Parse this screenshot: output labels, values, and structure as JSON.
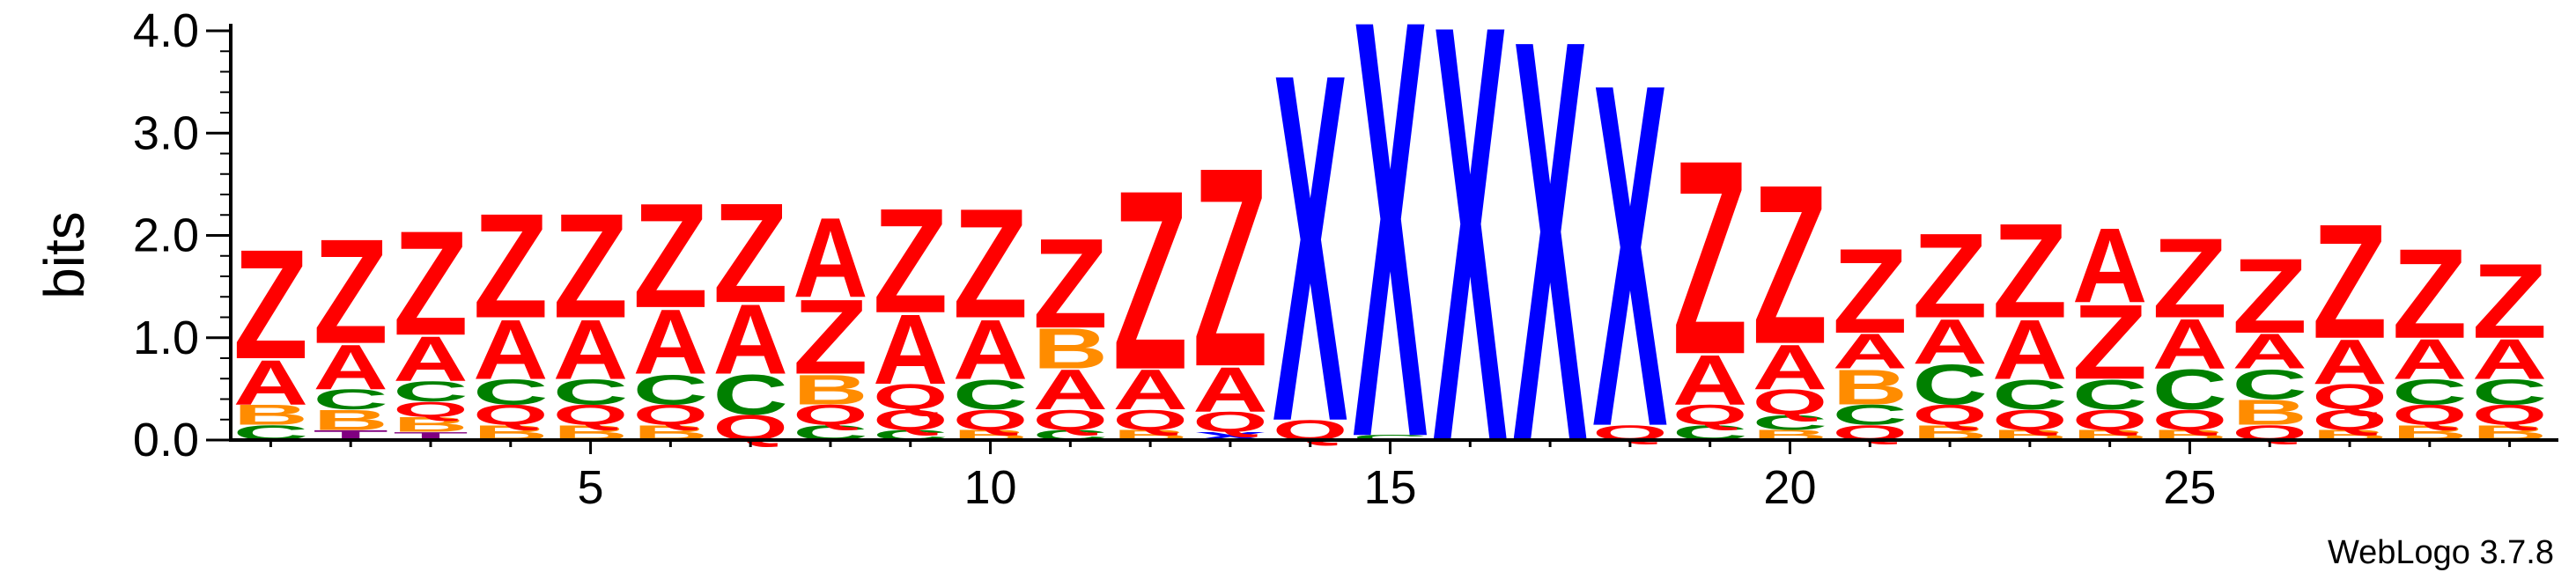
{
  "chart_data": {
    "type": "sequence-logo",
    "ylabel": "bits",
    "ylim": [
      0,
      4.0
    ],
    "yticks": [
      "0.0",
      "1.0",
      "2.0",
      "3.0",
      "4.0"
    ],
    "xticks": [
      5,
      10,
      15,
      20,
      25
    ],
    "positions": [
      {
        "pos": 1,
        "stack": [
          [
            "C",
            0.15
          ],
          [
            "B",
            0.2
          ],
          [
            "A",
            0.45
          ],
          [
            "Z",
            1.1
          ]
        ]
      },
      {
        "pos": 2,
        "stack": [
          [
            "T",
            0.1
          ],
          [
            "B",
            0.2
          ],
          [
            "C",
            0.2
          ],
          [
            "A",
            0.45
          ],
          [
            "Z",
            1.05
          ]
        ]
      },
      {
        "pos": 3,
        "stack": [
          [
            "T",
            0.08
          ],
          [
            "B",
            0.15
          ],
          [
            "Q",
            0.15
          ],
          [
            "C",
            0.2
          ],
          [
            "A",
            0.45
          ],
          [
            "Z",
            1.05
          ]
        ]
      },
      {
        "pos": 4,
        "stack": [
          [
            "B",
            0.15
          ],
          [
            "Q",
            0.2
          ],
          [
            "C",
            0.25
          ],
          [
            "A",
            0.6
          ],
          [
            "Z",
            1.05
          ]
        ]
      },
      {
        "pos": 5,
        "stack": [
          [
            "B",
            0.15
          ],
          [
            "Q",
            0.2
          ],
          [
            "C",
            0.25
          ],
          [
            "A",
            0.6
          ],
          [
            "Z",
            1.05
          ]
        ]
      },
      {
        "pos": 6,
        "stack": [
          [
            "B",
            0.15
          ],
          [
            "Q",
            0.2
          ],
          [
            "C",
            0.3
          ],
          [
            "A",
            0.65
          ],
          [
            "Z",
            1.05
          ]
        ]
      },
      {
        "pos": 7,
        "stack": [
          [
            "Q",
            0.25
          ],
          [
            "C",
            0.4
          ],
          [
            "A",
            0.7
          ],
          [
            "Z",
            1.0
          ]
        ]
      },
      {
        "pos": 8,
        "stack": [
          [
            "C",
            0.15
          ],
          [
            "Q",
            0.2
          ],
          [
            "B",
            0.3
          ],
          [
            "Z",
            0.75
          ],
          [
            "A",
            0.8
          ]
        ]
      },
      {
        "pos": 9,
        "stack": [
          [
            "C",
            0.1
          ],
          [
            "Q",
            0.2
          ],
          [
            "Q",
            0.25
          ],
          [
            "A",
            0.7
          ],
          [
            "Z",
            1.05
          ]
        ]
      },
      {
        "pos": 10,
        "stack": [
          [
            "B",
            0.1
          ],
          [
            "Q",
            0.2
          ],
          [
            "C",
            0.3
          ],
          [
            "A",
            0.6
          ],
          [
            "Z",
            1.1
          ]
        ]
      },
      {
        "pos": 11,
        "stack": [
          [
            "C",
            0.1
          ],
          [
            "Q",
            0.2
          ],
          [
            "A",
            0.4
          ],
          [
            "B",
            0.4
          ],
          [
            "Z",
            0.9
          ]
        ]
      },
      {
        "pos": 12,
        "stack": [
          [
            "B",
            0.1
          ],
          [
            "Q",
            0.2
          ],
          [
            "A",
            0.4
          ],
          [
            "Z",
            1.8
          ]
        ]
      },
      {
        "pos": 13,
        "stack": [
          [
            "X",
            0.08
          ],
          [
            "Q",
            0.2
          ],
          [
            "A",
            0.45
          ],
          [
            "Z",
            2.0
          ]
        ]
      },
      {
        "pos": 14,
        "stack": [
          [
            "Q",
            0.2
          ],
          [
            "X",
            3.5
          ]
        ]
      },
      {
        "pos": 15,
        "stack": [
          [
            "C",
            0.05
          ],
          [
            "X",
            4.2
          ]
        ]
      },
      {
        "pos": 16,
        "stack": [
          [
            "X",
            4.2
          ]
        ]
      },
      {
        "pos": 17,
        "stack": [
          [
            "X",
            4.05
          ]
        ]
      },
      {
        "pos": 18,
        "stack": [
          [
            "Q",
            0.15
          ],
          [
            "X",
            3.45
          ]
        ]
      },
      {
        "pos": 19,
        "stack": [
          [
            "C",
            0.15
          ],
          [
            "Q",
            0.2
          ],
          [
            "A",
            0.5
          ],
          [
            "Z",
            1.95
          ]
        ]
      },
      {
        "pos": 20,
        "stack": [
          [
            "B",
            0.1
          ],
          [
            "C",
            0.15
          ],
          [
            "Q",
            0.25
          ],
          [
            "A",
            0.45
          ],
          [
            "Z",
            1.6
          ]
        ]
      },
      {
        "pos": 21,
        "stack": [
          [
            "Q",
            0.15
          ],
          [
            "C",
            0.2
          ],
          [
            "B",
            0.35
          ],
          [
            "A",
            0.35
          ],
          [
            "Z",
            0.85
          ]
        ]
      },
      {
        "pos": 22,
        "stack": [
          [
            "B",
            0.15
          ],
          [
            "Q",
            0.2
          ],
          [
            "C",
            0.4
          ],
          [
            "A",
            0.45
          ],
          [
            "Z",
            0.85
          ]
        ]
      },
      {
        "pos": 23,
        "stack": [
          [
            "B",
            0.1
          ],
          [
            "Q",
            0.2
          ],
          [
            "C",
            0.3
          ],
          [
            "A",
            0.6
          ],
          [
            "Z",
            0.95
          ]
        ]
      },
      {
        "pos": 24,
        "stack": [
          [
            "B",
            0.1
          ],
          [
            "Q",
            0.2
          ],
          [
            "C",
            0.3
          ],
          [
            "Z",
            0.75
          ],
          [
            "A",
            0.75
          ]
        ]
      },
      {
        "pos": 25,
        "stack": [
          [
            "B",
            0.1
          ],
          [
            "Q",
            0.2
          ],
          [
            "C",
            0.4
          ],
          [
            "A",
            0.5
          ],
          [
            "Z",
            0.8
          ]
        ]
      },
      {
        "pos": 26,
        "stack": [
          [
            "Q",
            0.15
          ],
          [
            "B",
            0.25
          ],
          [
            "C",
            0.3
          ],
          [
            "A",
            0.35
          ],
          [
            "Z",
            0.75
          ]
        ]
      },
      {
        "pos": 27,
        "stack": [
          [
            "B",
            0.1
          ],
          [
            "Q",
            0.2
          ],
          [
            "Q",
            0.25
          ],
          [
            "A",
            0.45
          ],
          [
            "Z",
            1.15
          ]
        ]
      },
      {
        "pos": 28,
        "stack": [
          [
            "B",
            0.15
          ],
          [
            "Q",
            0.2
          ],
          [
            "C",
            0.25
          ],
          [
            "A",
            0.4
          ],
          [
            "Z",
            0.9
          ]
        ]
      },
      {
        "pos": 29,
        "stack": [
          [
            "B",
            0.15
          ],
          [
            "Q",
            0.2
          ],
          [
            "C",
            0.25
          ],
          [
            "A",
            0.4
          ],
          [
            "Z",
            0.75
          ]
        ]
      }
    ],
    "colors": {
      "Z": "#ff0000",
      "A": "#ff0000",
      "X": "#0000ff",
      "C": "#008000",
      "B": "#ff8c00",
      "Q": "#ff0000",
      "T": "#800080"
    }
  },
  "footer": {
    "version_label": "WebLogo 3.7.8"
  }
}
